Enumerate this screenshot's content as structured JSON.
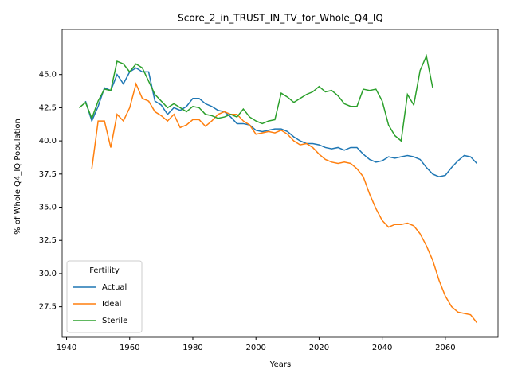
{
  "chart_data": {
    "type": "line",
    "title": "Score_2_in_TRUST_IN_TV_for_Whole_Q4_IQ",
    "x_label": "Years",
    "y_label": "% of Whole Q4_IQ Population",
    "x": [
      1944,
      1946,
      1948,
      1950,
      1952,
      1954,
      1956,
      1958,
      1960,
      1962,
      1964,
      1966,
      1968,
      1970,
      1972,
      1974,
      1976,
      1978,
      1980,
      1982,
      1984,
      1986,
      1988,
      1990,
      1992,
      1994,
      1996,
      1998,
      2000,
      2002,
      2004,
      2006,
      2008,
      2010,
      2012,
      2014,
      2016,
      2018,
      2020,
      2022,
      2024,
      2026,
      2028,
      2030,
      2032,
      2034,
      2036,
      2038,
      2040,
      2042,
      2044,
      2046,
      2048,
      2050,
      2052,
      2054,
      2056,
      2058,
      2060,
      2062,
      2064,
      2066,
      2068,
      2070
    ],
    "series": [
      {
        "name": "Actual",
        "color": "#1f77b4",
        "values": [
          null,
          43.0,
          41.5,
          42.6,
          44.0,
          43.8,
          45.0,
          44.3,
          45.2,
          45.5,
          45.2,
          45.2,
          43.0,
          42.7,
          42.0,
          42.5,
          42.3,
          42.6,
          43.2,
          43.2,
          42.8,
          42.6,
          42.3,
          42.2,
          41.8,
          41.3,
          41.3,
          41.2,
          40.8,
          40.7,
          40.8,
          40.9,
          40.9,
          40.7,
          40.3,
          40.0,
          39.8,
          39.8,
          39.7,
          39.5,
          39.4,
          39.5,
          39.3,
          39.5,
          39.5,
          39.0,
          38.6,
          38.4,
          38.5,
          38.8,
          38.7,
          38.8,
          38.9,
          38.8,
          38.6,
          38.0,
          37.5,
          37.3,
          37.4,
          38.0,
          38.5,
          38.9,
          38.8,
          38.3
        ]
      },
      {
        "name": "Ideal",
        "color": "#ff7f0e",
        "values": [
          null,
          null,
          37.9,
          41.5,
          41.5,
          39.5,
          42.0,
          41.5,
          42.5,
          44.3,
          43.2,
          43.0,
          42.2,
          41.9,
          41.5,
          42.0,
          41.0,
          41.2,
          41.6,
          41.6,
          41.1,
          41.5,
          42.0,
          42.2,
          42.0,
          42.0,
          41.5,
          41.2,
          40.5,
          40.6,
          40.7,
          40.6,
          40.8,
          40.5,
          40.0,
          39.7,
          39.8,
          39.5,
          39.0,
          38.6,
          38.4,
          38.3,
          38.4,
          38.3,
          37.9,
          37.3,
          36.0,
          34.9,
          34.0,
          33.5,
          33.7,
          33.7,
          33.8,
          33.6,
          33.0,
          32.1,
          31.0,
          29.5,
          28.3,
          27.5,
          27.1,
          27.0,
          26.9,
          26.3
        ]
      },
      {
        "name": "Sterile",
        "color": "#2ca02c",
        "values": [
          42.5,
          42.9,
          41.7,
          43.0,
          43.9,
          43.8,
          46.0,
          45.8,
          45.2,
          45.8,
          45.5,
          44.5,
          43.5,
          43.0,
          42.5,
          42.8,
          42.5,
          42.2,
          42.6,
          42.5,
          42.0,
          41.9,
          41.7,
          41.8,
          42.0,
          41.8,
          42.4,
          41.8,
          41.5,
          41.3,
          41.5,
          41.6,
          43.6,
          43.3,
          42.9,
          43.2,
          43.5,
          43.7,
          44.1,
          43.7,
          43.8,
          43.4,
          42.8,
          42.6,
          42.6,
          43.9,
          43.8,
          43.9,
          43.0,
          41.2,
          40.4,
          40.0,
          43.5,
          42.7,
          45.3,
          46.4,
          44.0,
          null,
          null,
          null,
          null,
          null,
          null,
          null
        ]
      }
    ],
    "xlim": [
      1938.6,
      2076.7
    ],
    "xticks": [
      1940,
      1960,
      1980,
      2000,
      2020,
      2040,
      2060
    ],
    "ylim": [
      25.2,
      48.4
    ],
    "yticks": [
      27.5,
      {
        "value": 30.0,
        "label": "30.0"
      },
      32.5,
      {
        "value": 35.0,
        "label": "35.0"
      },
      37.5,
      {
        "value": 40.0,
        "label": "40.0"
      },
      42.5,
      {
        "value": 45.0,
        "label": "45.0"
      }
    ],
    "legend_title": "Fertility",
    "legend_position": "lower left",
    "grid": false
  }
}
